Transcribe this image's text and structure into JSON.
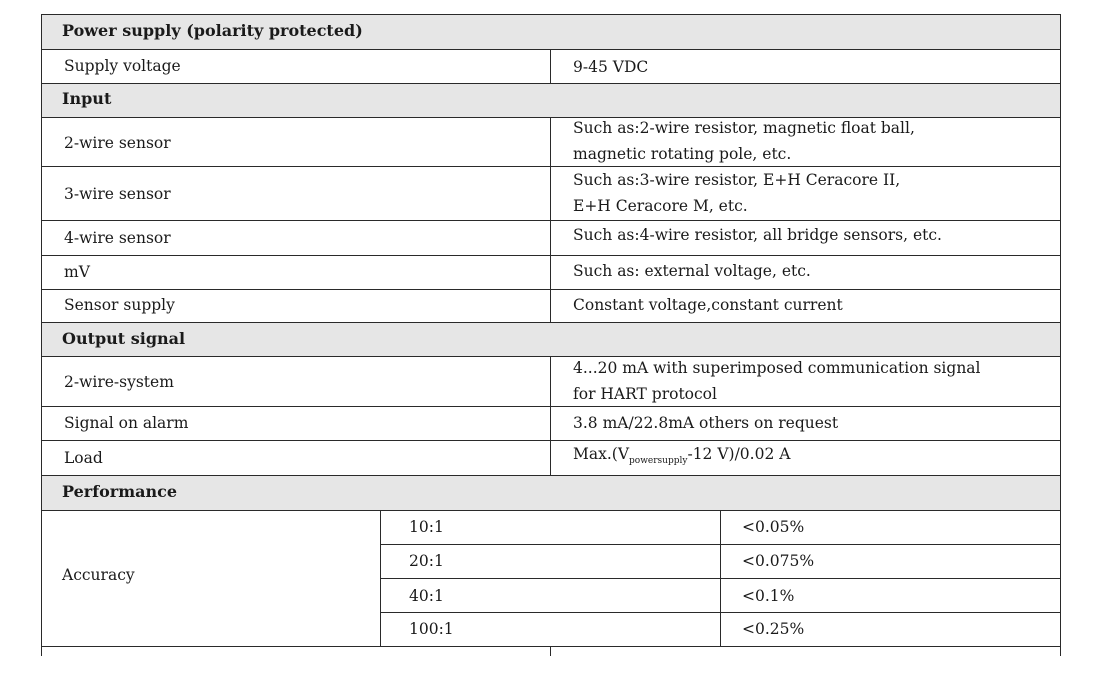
{
  "sections": {
    "power": {
      "title": "Power supply (polarity protected)"
    },
    "input": {
      "title": "Input"
    },
    "output": {
      "title": "Output signal"
    },
    "performance": {
      "title": "Performance"
    }
  },
  "rows": {
    "supply_voltage": {
      "label": "Supply voltage",
      "value": "9-45 VDC"
    },
    "two_wire_sensor": {
      "label": "2-wire sensor",
      "value_line1": "Such as:2-wire resistor, magnetic float ball,",
      "value_line2": "magnetic rotating pole, etc."
    },
    "three_wire_sensor": {
      "label": "3-wire sensor",
      "value_line1": "Such as:3-wire resistor, E+H Ceracore II,",
      "value_line2": "E+H Ceracore M, etc."
    },
    "four_wire_sensor": {
      "label": "4-wire sensor",
      "value": "Such as:4-wire resistor, all bridge sensors, etc."
    },
    "mv": {
      "label": "mV",
      "value": "Such as: external voltage, etc."
    },
    "sensor_supply": {
      "label": "Sensor supply",
      "value": "Constant voltage,constant current"
    },
    "two_wire_system": {
      "label": "2-wire-system",
      "value_line1": "4...20 mA with superimposed communication signal",
      "value_line2": "for HART protocol"
    },
    "signal_on_alarm": {
      "label": "Signal on alarm",
      "value": "3.8 mA/22.8mA others on request"
    },
    "load": {
      "label": "Load",
      "value_prefix": "Max.(V",
      "value_subscript": "powersupply",
      "value_suffix": "-12 V)/0.02 A"
    }
  },
  "accuracy": {
    "label": "Accuracy",
    "rows": [
      {
        "ratio": "10:1",
        "value": "<0.05%"
      },
      {
        "ratio": "20:1",
        "value": "<0.075%"
      },
      {
        "ratio": "40:1",
        "value": "<0.1%"
      },
      {
        "ratio": "100:1",
        "value": "<0.25%"
      }
    ]
  }
}
